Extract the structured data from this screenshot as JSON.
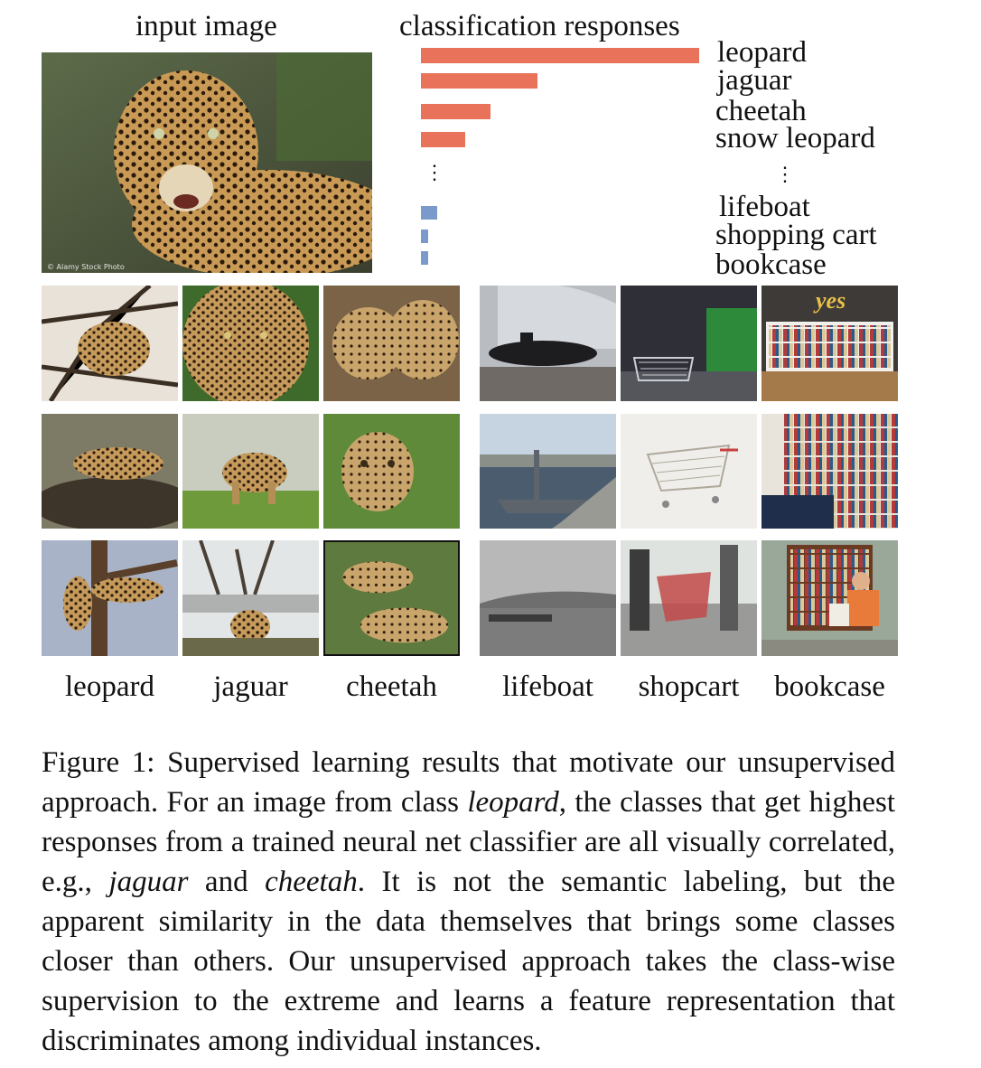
{
  "header": {
    "input_title": "input image",
    "responses_title": "classification responses"
  },
  "input_image": {
    "subject": "leopard",
    "credit": "© Alamy Stock Photo"
  },
  "chart_data": {
    "type": "bar",
    "categories": [
      "leopard",
      "jaguar",
      "cheetah",
      "snow leopard",
      "lifeboat",
      "shopping cart",
      "bookcase"
    ],
    "values": [
      1.0,
      0.42,
      0.25,
      0.16,
      0.06,
      0.025,
      0.025
    ],
    "colors": [
      "#E8735A",
      "#E8735A",
      "#E8735A",
      "#E8735A",
      "#7B9ACC",
      "#7B9ACC",
      "#7B9ACC"
    ],
    "gap_marker": "⋮",
    "title": "classification responses",
    "xlabel": "",
    "ylabel": ""
  },
  "grid": {
    "columns": [
      {
        "label": "leopard",
        "tiles": [
          "leopard-in-tree-photo",
          "leopard-lying-on-log-photo",
          "leopard-on-tree-trunk-photo"
        ]
      },
      {
        "label": "jaguar",
        "tiles": [
          "jaguar-face-photo",
          "jaguar-standing-photo",
          "jaguar-in-enclosure-photo"
        ]
      },
      {
        "label": "cheetah",
        "tiles": [
          "cheetahs-grooming-photo",
          "cheetah-face-photo",
          "cheetahs-resting-photo"
        ]
      },
      {
        "label": "lifeboat",
        "tiles": [
          "submarine-display-photo",
          "warship-in-harbor-photo",
          "ship-at-sea-photo"
        ]
      },
      {
        "label": "shopcart",
        "tiles": [
          "shopping-carts-lot-photo",
          "shopping-cart-photo",
          "people-with-carts-photo"
        ]
      },
      {
        "label": "bookcase",
        "tiles": [
          "bookcase-room-photo",
          "bookshelves-photo",
          "man-at-street-bookcase-photo"
        ]
      }
    ],
    "tile_text": {
      "bookcase-room-photo": "yes"
    }
  },
  "caption": {
    "label": "Figure 1:",
    "seg1": " Supervised learning results that motivate our unsupervised approach. For an image from class ",
    "em1": "leopard",
    "seg2": ", the classes that get highest responses from a trained neural net classifier are all visually correlated, e.g., ",
    "em2": "jaguar",
    "seg3": " and ",
    "em3": "cheetah",
    "seg4": ". It is not the semantic labeling, but the apparent similarity in the data themselves that brings some classes closer than others. Our unsupervised approach takes the class-wise supervision to the extreme and learns a feature representation that discriminates among individual instances."
  }
}
